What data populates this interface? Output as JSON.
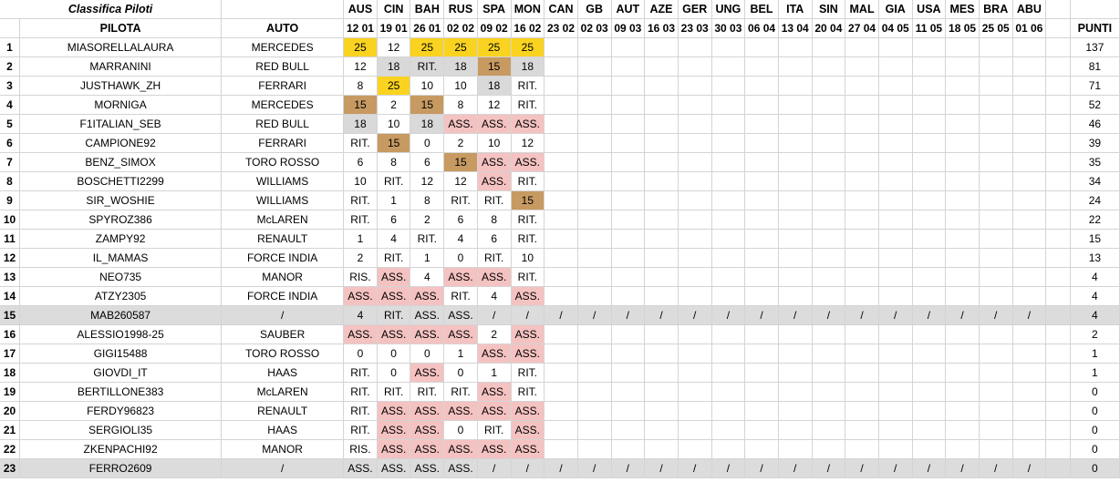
{
  "sheet_title": "Classifica Piloti",
  "headers": {
    "pilota": "PILOTA",
    "auto": "AUTO",
    "punti": "PUNTI"
  },
  "races": [
    {
      "name": "AUS",
      "date": "12 01"
    },
    {
      "name": "CIN",
      "date": "19 01"
    },
    {
      "name": "BAH",
      "date": "26 01"
    },
    {
      "name": "RUS",
      "date": "02 02"
    },
    {
      "name": "SPA",
      "date": "09 02"
    },
    {
      "name": "MON",
      "date": "16 02"
    },
    {
      "name": "CAN",
      "date": "23 02"
    },
    {
      "name": "GB",
      "date": "02 03"
    },
    {
      "name": "AUT",
      "date": "09 03"
    },
    {
      "name": "AZE",
      "date": "16 03"
    },
    {
      "name": "GER",
      "date": "23 03"
    },
    {
      "name": "UNG",
      "date": "30 03"
    },
    {
      "name": "BEL",
      "date": "06 04"
    },
    {
      "name": "ITA",
      "date": "13 04"
    },
    {
      "name": "SIN",
      "date": "20 04"
    },
    {
      "name": "MAL",
      "date": "27 04"
    },
    {
      "name": "GIA",
      "date": "04 05"
    },
    {
      "name": "USA",
      "date": "11 05"
    },
    {
      "name": "MES",
      "date": "18 05"
    },
    {
      "name": "BRA",
      "date": "25 05"
    },
    {
      "name": "ABU",
      "date": "01 06"
    }
  ],
  "colors": {
    "gold": "#f9d31f",
    "silver": "#d9d9d9",
    "bronze": "#c79a62",
    "pink": "#f5c2c2",
    "grey_row": "#dcdcdc"
  },
  "rows": [
    {
      "pos": "1",
      "pilot": "MIASORELLALAURA",
      "car": "MERCEDES",
      "points": "137",
      "grey": false,
      "results": [
        {
          "v": "25",
          "c": "gold"
        },
        {
          "v": "12",
          "c": ""
        },
        {
          "v": "25",
          "c": "gold"
        },
        {
          "v": "25",
          "c": "gold"
        },
        {
          "v": "25",
          "c": "gold"
        },
        {
          "v": "25",
          "c": "gold"
        }
      ]
    },
    {
      "pos": "2",
      "pilot": "MARRANINI",
      "car": "RED BULL",
      "points": "81",
      "grey": false,
      "results": [
        {
          "v": "12",
          "c": ""
        },
        {
          "v": "18",
          "c": "silver"
        },
        {
          "v": "RIT.",
          "c": "silver"
        },
        {
          "v": "18",
          "c": "silver"
        },
        {
          "v": "15",
          "c": "bronze"
        },
        {
          "v": "18",
          "c": "silver"
        }
      ]
    },
    {
      "pos": "3",
      "pilot": "JUSTHAWK_ZH",
      "car": "FERRARI",
      "points": "71",
      "grey": false,
      "results": [
        {
          "v": "8",
          "c": ""
        },
        {
          "v": "25",
          "c": "gold"
        },
        {
          "v": "10",
          "c": ""
        },
        {
          "v": "10",
          "c": ""
        },
        {
          "v": "18",
          "c": "silver"
        },
        {
          "v": "RIT.",
          "c": ""
        }
      ]
    },
    {
      "pos": "4",
      "pilot": "MORNIGA",
      "car": "MERCEDES",
      "points": "52",
      "grey": false,
      "results": [
        {
          "v": "15",
          "c": "bronze"
        },
        {
          "v": "2",
          "c": ""
        },
        {
          "v": "15",
          "c": "bronze"
        },
        {
          "v": "8",
          "c": ""
        },
        {
          "v": "12",
          "c": ""
        },
        {
          "v": "RIT.",
          "c": ""
        }
      ]
    },
    {
      "pos": "5",
      "pilot": "F1ITALIAN_SEB",
      "car": "RED BULL",
      "points": "46",
      "grey": false,
      "results": [
        {
          "v": "18",
          "c": "silver"
        },
        {
          "v": "10",
          "c": ""
        },
        {
          "v": "18",
          "c": "silver"
        },
        {
          "v": "ASS.",
          "c": "pink"
        },
        {
          "v": "ASS.",
          "c": "pink"
        },
        {
          "v": "ASS.",
          "c": "pink"
        }
      ]
    },
    {
      "pos": "6",
      "pilot": "CAMPIONE92",
      "car": "FERRARI",
      "points": "39",
      "grey": false,
      "results": [
        {
          "v": "RIT.",
          "c": ""
        },
        {
          "v": "15",
          "c": "bronze"
        },
        {
          "v": "0",
          "c": ""
        },
        {
          "v": "2",
          "c": ""
        },
        {
          "v": "10",
          "c": ""
        },
        {
          "v": "12",
          "c": ""
        }
      ]
    },
    {
      "pos": "7",
      "pilot": "BENZ_SIMOX",
      "car": "TORO ROSSO",
      "points": "35",
      "grey": false,
      "results": [
        {
          "v": "6",
          "c": ""
        },
        {
          "v": "8",
          "c": ""
        },
        {
          "v": "6",
          "c": ""
        },
        {
          "v": "15",
          "c": "bronze"
        },
        {
          "v": "ASS.",
          "c": "pink"
        },
        {
          "v": "ASS.",
          "c": "pink"
        }
      ]
    },
    {
      "pos": "8",
      "pilot": "BOSCHETTI2299",
      "car": "WILLIAMS",
      "points": "34",
      "grey": false,
      "results": [
        {
          "v": "10",
          "c": ""
        },
        {
          "v": "RIT.",
          "c": ""
        },
        {
          "v": "12",
          "c": ""
        },
        {
          "v": "12",
          "c": ""
        },
        {
          "v": "ASS.",
          "c": "pink"
        },
        {
          "v": "RIT.",
          "c": ""
        }
      ]
    },
    {
      "pos": "9",
      "pilot": "SIR_WOSHIE",
      "car": "WILLIAMS",
      "points": "24",
      "grey": false,
      "results": [
        {
          "v": "RIT.",
          "c": ""
        },
        {
          "v": "1",
          "c": ""
        },
        {
          "v": "8",
          "c": ""
        },
        {
          "v": "RIT.",
          "c": ""
        },
        {
          "v": "RIT.",
          "c": ""
        },
        {
          "v": "15",
          "c": "bronze"
        }
      ]
    },
    {
      "pos": "10",
      "pilot": "SPYROZ386",
      "car": "McLAREN",
      "points": "22",
      "grey": false,
      "results": [
        {
          "v": "RIT.",
          "c": ""
        },
        {
          "v": "6",
          "c": ""
        },
        {
          "v": "2",
          "c": ""
        },
        {
          "v": "6",
          "c": ""
        },
        {
          "v": "8",
          "c": ""
        },
        {
          "v": "RIT.",
          "c": ""
        }
      ]
    },
    {
      "pos": "11",
      "pilot": "ZAMPY92",
      "car": "RENAULT",
      "points": "15",
      "grey": false,
      "results": [
        {
          "v": "1",
          "c": ""
        },
        {
          "v": "4",
          "c": ""
        },
        {
          "v": "RIT.",
          "c": ""
        },
        {
          "v": "4",
          "c": ""
        },
        {
          "v": "6",
          "c": ""
        },
        {
          "v": "RIT.",
          "c": ""
        }
      ]
    },
    {
      "pos": "12",
      "pilot": "IL_MAMAS",
      "car": "FORCE INDIA",
      "points": "13",
      "grey": false,
      "results": [
        {
          "v": "2",
          "c": ""
        },
        {
          "v": "RIT.",
          "c": ""
        },
        {
          "v": "1",
          "c": ""
        },
        {
          "v": "0",
          "c": ""
        },
        {
          "v": "RIT.",
          "c": ""
        },
        {
          "v": "10",
          "c": ""
        }
      ]
    },
    {
      "pos": "13",
      "pilot": "NEO735",
      "car": "MANOR",
      "points": "4",
      "grey": false,
      "results": [
        {
          "v": "RIS.",
          "c": ""
        },
        {
          "v": "ASS.",
          "c": "pink"
        },
        {
          "v": "4",
          "c": ""
        },
        {
          "v": "ASS.",
          "c": "pink"
        },
        {
          "v": "ASS.",
          "c": "pink"
        },
        {
          "v": "RIT.",
          "c": ""
        }
      ]
    },
    {
      "pos": "14",
      "pilot": "ATZY2305",
      "car": "FORCE INDIA",
      "points": "4",
      "grey": false,
      "results": [
        {
          "v": "ASS.",
          "c": "pink"
        },
        {
          "v": "ASS.",
          "c": "pink"
        },
        {
          "v": "ASS.",
          "c": "pink"
        },
        {
          "v": "RIT.",
          "c": ""
        },
        {
          "v": "4",
          "c": ""
        },
        {
          "v": "ASS.",
          "c": "pink"
        }
      ]
    },
    {
      "pos": "15",
      "pilot": "MAB260587",
      "car": "/",
      "points": "4",
      "grey": true,
      "results": [
        {
          "v": "4",
          "c": ""
        },
        {
          "v": "RIT.",
          "c": ""
        },
        {
          "v": "ASS.",
          "c": ""
        },
        {
          "v": "ASS.",
          "c": ""
        },
        {
          "v": "/",
          "c": ""
        },
        {
          "v": "/",
          "c": ""
        }
      ]
    },
    {
      "pos": "16",
      "pilot": "ALESSIO1998-25",
      "car": "SAUBER",
      "points": "2",
      "grey": false,
      "results": [
        {
          "v": "ASS.",
          "c": "pink"
        },
        {
          "v": "ASS.",
          "c": "pink"
        },
        {
          "v": "ASS.",
          "c": "pink"
        },
        {
          "v": "ASS.",
          "c": "pink"
        },
        {
          "v": "2",
          "c": ""
        },
        {
          "v": "ASS.",
          "c": "pink"
        }
      ]
    },
    {
      "pos": "17",
      "pilot": "GIGI15488",
      "car": "TORO ROSSO",
      "points": "1",
      "grey": false,
      "results": [
        {
          "v": "0",
          "c": ""
        },
        {
          "v": "0",
          "c": ""
        },
        {
          "v": "0",
          "c": ""
        },
        {
          "v": "1",
          "c": ""
        },
        {
          "v": "ASS.",
          "c": "pink"
        },
        {
          "v": "ASS.",
          "c": "pink"
        }
      ]
    },
    {
      "pos": "18",
      "pilot": "GIOVDI_IT",
      "car": "HAAS",
      "points": "1",
      "grey": false,
      "results": [
        {
          "v": "RIT.",
          "c": ""
        },
        {
          "v": "0",
          "c": ""
        },
        {
          "v": "ASS.",
          "c": "pink"
        },
        {
          "v": "0",
          "c": ""
        },
        {
          "v": "1",
          "c": ""
        },
        {
          "v": "RIT.",
          "c": ""
        }
      ]
    },
    {
      "pos": "19",
      "pilot": "BERTILLONE383",
      "car": "McLAREN",
      "points": "0",
      "grey": false,
      "results": [
        {
          "v": "RIT.",
          "c": ""
        },
        {
          "v": "RIT.",
          "c": ""
        },
        {
          "v": "RIT.",
          "c": ""
        },
        {
          "v": "RIT.",
          "c": ""
        },
        {
          "v": "ASS.",
          "c": "pink"
        },
        {
          "v": "RIT.",
          "c": ""
        }
      ]
    },
    {
      "pos": "20",
      "pilot": "FERDY96823",
      "car": "RENAULT",
      "points": "0",
      "grey": false,
      "results": [
        {
          "v": "RIT.",
          "c": ""
        },
        {
          "v": "ASS.",
          "c": "pink"
        },
        {
          "v": "ASS.",
          "c": "pink"
        },
        {
          "v": "ASS.",
          "c": "pink"
        },
        {
          "v": "ASS.",
          "c": "pink"
        },
        {
          "v": "ASS.",
          "c": "pink"
        }
      ]
    },
    {
      "pos": "21",
      "pilot": "SERGIOLI35",
      "car": "HAAS",
      "points": "0",
      "grey": false,
      "results": [
        {
          "v": "RIT.",
          "c": ""
        },
        {
          "v": "ASS.",
          "c": "pink"
        },
        {
          "v": "ASS.",
          "c": "pink"
        },
        {
          "v": "0",
          "c": ""
        },
        {
          "v": "RIT.",
          "c": ""
        },
        {
          "v": "ASS.",
          "c": "pink"
        }
      ]
    },
    {
      "pos": "22",
      "pilot": "ZKENPACHI92",
      "car": "MANOR",
      "points": "0",
      "grey": false,
      "results": [
        {
          "v": "RIS.",
          "c": ""
        },
        {
          "v": "ASS.",
          "c": "pink"
        },
        {
          "v": "ASS.",
          "c": "pink"
        },
        {
          "v": "ASS.",
          "c": "pink"
        },
        {
          "v": "ASS.",
          "c": "pink"
        },
        {
          "v": "ASS.",
          "c": "pink"
        }
      ]
    },
    {
      "pos": "23",
      "pilot": "FERRO2609",
      "car": "/",
      "points": "0",
      "grey": true,
      "results": [
        {
          "v": "ASS.",
          "c": ""
        },
        {
          "v": "ASS.",
          "c": ""
        },
        {
          "v": "ASS.",
          "c": ""
        },
        {
          "v": "ASS.",
          "c": ""
        },
        {
          "v": "/",
          "c": ""
        },
        {
          "v": "/",
          "c": ""
        }
      ]
    }
  ]
}
